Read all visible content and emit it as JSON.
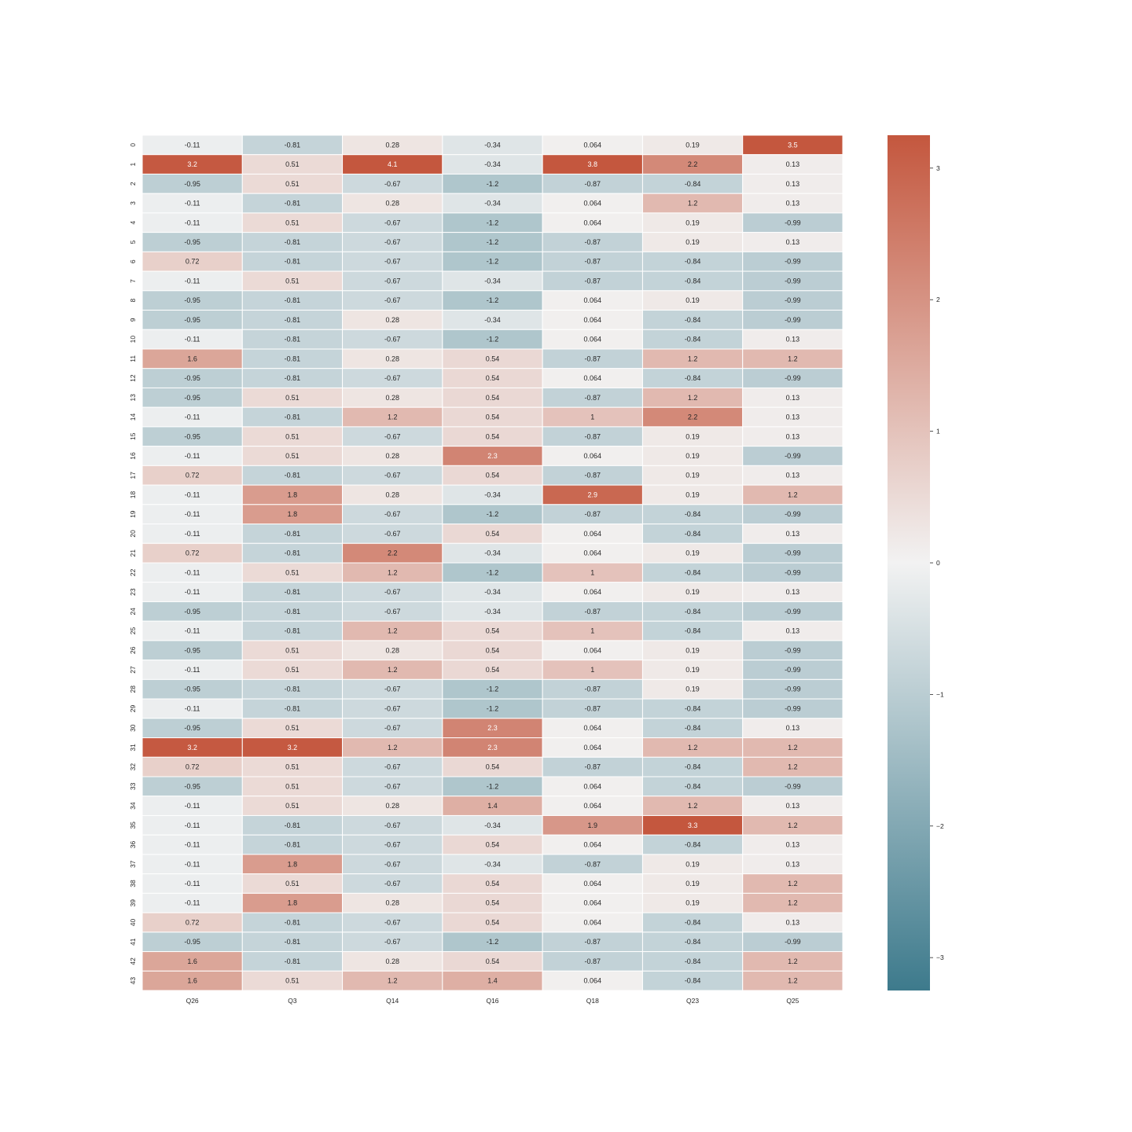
{
  "chart_data": {
    "type": "heatmap",
    "title": "",
    "xlabel": "",
    "ylabel": "",
    "columns": [
      "Q26",
      "Q3",
      "Q14",
      "Q16",
      "Q18",
      "Q23",
      "Q25"
    ],
    "rows": [
      "0",
      "1",
      "2",
      "3",
      "4",
      "5",
      "6",
      "7",
      "8",
      "9",
      "10",
      "11",
      "12",
      "13",
      "14",
      "15",
      "16",
      "17",
      "18",
      "19",
      "20",
      "21",
      "22",
      "23",
      "24",
      "25",
      "26",
      "27",
      "28",
      "29",
      "30",
      "31",
      "32",
      "33",
      "34",
      "35",
      "36",
      "37",
      "38",
      "39",
      "40",
      "41",
      "42",
      "43"
    ],
    "values": [
      [
        -0.11,
        -0.81,
        0.28,
        -0.34,
        0.064,
        0.19,
        3.5
      ],
      [
        3.2,
        0.51,
        4.1,
        -0.34,
        3.8,
        2.2,
        0.13
      ],
      [
        -0.95,
        0.51,
        -0.67,
        -1.2,
        -0.87,
        -0.84,
        0.13
      ],
      [
        -0.11,
        -0.81,
        0.28,
        -0.34,
        0.064,
        1.2,
        0.13
      ],
      [
        -0.11,
        0.51,
        -0.67,
        -1.2,
        0.064,
        0.19,
        -0.99
      ],
      [
        -0.95,
        -0.81,
        -0.67,
        -1.2,
        -0.87,
        0.19,
        0.13
      ],
      [
        0.72,
        -0.81,
        -0.67,
        -1.2,
        -0.87,
        -0.84,
        -0.99
      ],
      [
        -0.11,
        0.51,
        -0.67,
        -0.34,
        -0.87,
        -0.84,
        -0.99
      ],
      [
        -0.95,
        -0.81,
        -0.67,
        -1.2,
        0.064,
        0.19,
        -0.99
      ],
      [
        -0.95,
        -0.81,
        0.28,
        -0.34,
        0.064,
        -0.84,
        -0.99
      ],
      [
        -0.11,
        -0.81,
        -0.67,
        -1.2,
        0.064,
        -0.84,
        0.13
      ],
      [
        1.6,
        -0.81,
        0.28,
        0.54,
        -0.87,
        1.2,
        1.2
      ],
      [
        -0.95,
        -0.81,
        -0.67,
        0.54,
        0.064,
        -0.84,
        -0.99
      ],
      [
        -0.95,
        0.51,
        0.28,
        0.54,
        -0.87,
        1.2,
        0.13
      ],
      [
        -0.11,
        -0.81,
        1.2,
        0.54,
        1,
        2.2,
        0.13
      ],
      [
        -0.95,
        0.51,
        -0.67,
        0.54,
        -0.87,
        0.19,
        0.13
      ],
      [
        -0.11,
        0.51,
        0.28,
        2.3,
        0.064,
        0.19,
        -0.99
      ],
      [
        0.72,
        -0.81,
        -0.67,
        0.54,
        -0.87,
        0.19,
        0.13
      ],
      [
        -0.11,
        1.8,
        0.28,
        -0.34,
        2.9,
        0.19,
        1.2
      ],
      [
        -0.11,
        1.8,
        -0.67,
        -1.2,
        -0.87,
        -0.84,
        -0.99
      ],
      [
        -0.11,
        -0.81,
        -0.67,
        0.54,
        0.064,
        -0.84,
        0.13
      ],
      [
        0.72,
        -0.81,
        2.2,
        -0.34,
        0.064,
        0.19,
        -0.99
      ],
      [
        -0.11,
        0.51,
        1.2,
        -1.2,
        1,
        -0.84,
        -0.99
      ],
      [
        -0.11,
        -0.81,
        -0.67,
        -0.34,
        0.064,
        0.19,
        0.13
      ],
      [
        -0.95,
        -0.81,
        -0.67,
        -0.34,
        -0.87,
        -0.84,
        -0.99
      ],
      [
        -0.11,
        -0.81,
        1.2,
        0.54,
        1,
        -0.84,
        0.13
      ],
      [
        -0.95,
        0.51,
        0.28,
        0.54,
        0.064,
        0.19,
        -0.99
      ],
      [
        -0.11,
        0.51,
        1.2,
        0.54,
        1,
        0.19,
        -0.99
      ],
      [
        -0.95,
        -0.81,
        -0.67,
        -1.2,
        -0.87,
        0.19,
        -0.99
      ],
      [
        -0.11,
        -0.81,
        -0.67,
        -1.2,
        -0.87,
        -0.84,
        -0.99
      ],
      [
        -0.95,
        0.51,
        -0.67,
        2.3,
        0.064,
        -0.84,
        0.13
      ],
      [
        3.2,
        3.2,
        1.2,
        2.3,
        0.064,
        1.2,
        1.2
      ],
      [
        0.72,
        0.51,
        -0.67,
        0.54,
        -0.87,
        -0.84,
        1.2
      ],
      [
        -0.95,
        0.51,
        -0.67,
        -1.2,
        0.064,
        -0.84,
        -0.99
      ],
      [
        -0.11,
        0.51,
        0.28,
        1.4,
        0.064,
        1.2,
        0.13
      ],
      [
        -0.11,
        -0.81,
        -0.67,
        -0.34,
        1.9,
        3.3,
        1.2
      ],
      [
        -0.11,
        -0.81,
        -0.67,
        0.54,
        0.064,
        -0.84,
        0.13
      ],
      [
        -0.11,
        1.8,
        -0.67,
        -0.34,
        -0.87,
        0.19,
        0.13
      ],
      [
        -0.11,
        0.51,
        -0.67,
        0.54,
        0.064,
        0.19,
        1.2
      ],
      [
        -0.11,
        1.8,
        0.28,
        0.54,
        0.064,
        0.19,
        1.2
      ],
      [
        0.72,
        -0.81,
        -0.67,
        0.54,
        0.064,
        -0.84,
        0.13
      ],
      [
        -0.95,
        -0.81,
        -0.67,
        -1.2,
        -0.87,
        -0.84,
        -0.99
      ],
      [
        1.6,
        -0.81,
        0.28,
        0.54,
        -0.87,
        -0.84,
        1.2
      ],
      [
        1.6,
        0.51,
        1.2,
        1.4,
        0.064,
        -0.84,
        1.2
      ]
    ],
    "colorbar": {
      "vmin": -3.25,
      "vmax": 3.25,
      "ticks": [
        3,
        2,
        1,
        0,
        -1,
        -2,
        -3
      ],
      "tick_labels": [
        "3",
        "2",
        "1",
        "0",
        "−1",
        "−2",
        "−3"
      ]
    },
    "colormap": {
      "negative": "#3d7a8c",
      "center": "#f2f2f2",
      "positive": "#c4573e"
    },
    "grid": false,
    "legend": "colorbar-right"
  }
}
